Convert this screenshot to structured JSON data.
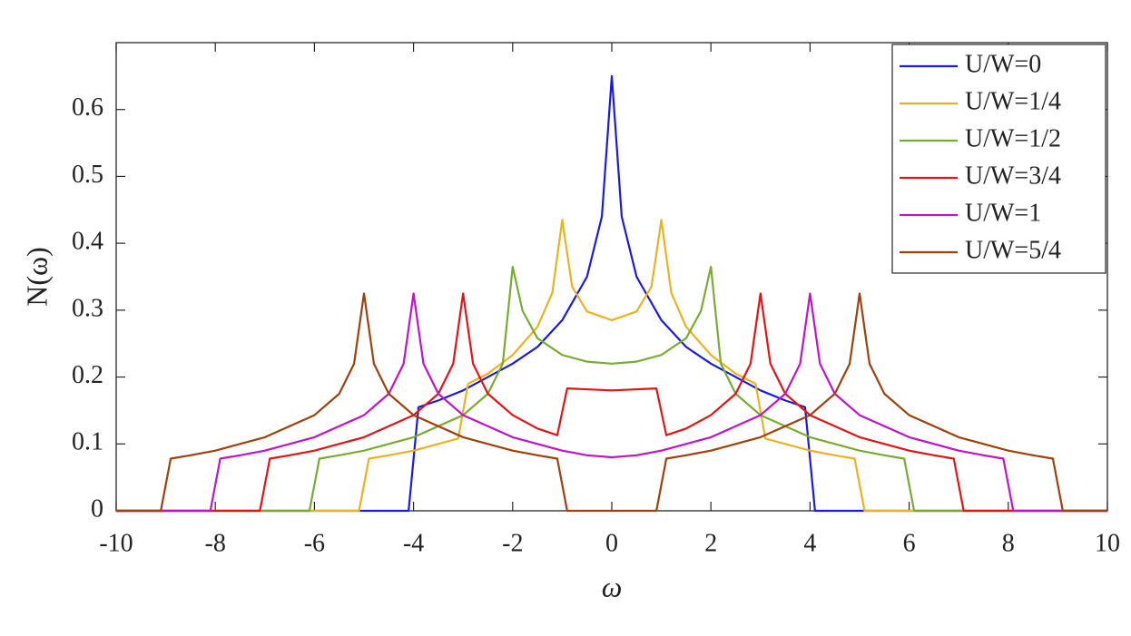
{
  "chart_data": {
    "type": "line",
    "xlabel": "ω",
    "ylabel": "N(ω)",
    "xlim": [
      -10,
      10
    ],
    "ylim": [
      0,
      0.7
    ],
    "xticks": [
      -10,
      -8,
      -6,
      -4,
      -2,
      0,
      2,
      4,
      6,
      8,
      10
    ],
    "yticks": [
      0,
      0.1,
      0.2,
      0.3,
      0.4,
      0.5,
      0.6
    ],
    "grid": false,
    "legend": "upper right",
    "series": [
      {
        "name": "U/W=0",
        "color": "#1a1ae0",
        "x": [
          -10,
          -4.1,
          -3.9,
          -3.5,
          -3,
          -2.5,
          -2,
          -1.5,
          -1,
          -0.5,
          -0.2,
          0,
          0.2,
          0.5,
          1,
          1.5,
          2,
          2.5,
          3,
          3.5,
          3.9,
          4.1,
          10
        ],
        "values": [
          0,
          0,
          0.155,
          0.165,
          0.18,
          0.2,
          0.22,
          0.245,
          0.285,
          0.35,
          0.44,
          0.65,
          0.44,
          0.35,
          0.285,
          0.245,
          0.22,
          0.2,
          0.18,
          0.165,
          0.155,
          0,
          0
        ]
      },
      {
        "name": "U/W=1/4",
        "color": "#edb120",
        "x": [
          -10,
          -5.1,
          -4.9,
          -4.5,
          -4,
          -3.5,
          -3.1,
          -2.9,
          -2.5,
          -2,
          -1.5,
          -1.2,
          -1,
          -0.8,
          -0.5,
          0,
          0.5,
          0.8,
          1,
          1.2,
          1.5,
          2,
          2.5,
          2.9,
          3.1,
          3.5,
          4,
          4.5,
          4.9,
          5.1,
          10
        ],
        "values": [
          0,
          0,
          0.078,
          0.083,
          0.09,
          0.1,
          0.108,
          0.19,
          0.205,
          0.233,
          0.275,
          0.326,
          0.435,
          0.335,
          0.298,
          0.285,
          0.298,
          0.335,
          0.435,
          0.326,
          0.275,
          0.233,
          0.205,
          0.19,
          0.108,
          0.1,
          0.09,
          0.083,
          0.078,
          0,
          0
        ]
      },
      {
        "name": "U/W=1/2",
        "color": "#77ac30",
        "x": [
          -10,
          -6.1,
          -5.9,
          -5.5,
          -5,
          -4,
          -3,
          -2.5,
          -2.2,
          -2,
          -1.8,
          -1.5,
          -1,
          -0.5,
          0,
          0.5,
          1,
          1.5,
          1.8,
          2,
          2.2,
          2.5,
          3,
          4,
          5,
          5.5,
          5.9,
          6.1,
          10
        ],
        "values": [
          0,
          0,
          0.078,
          0.083,
          0.09,
          0.11,
          0.143,
          0.175,
          0.22,
          0.365,
          0.299,
          0.258,
          0.233,
          0.223,
          0.22,
          0.223,
          0.233,
          0.258,
          0.299,
          0.365,
          0.22,
          0.175,
          0.143,
          0.11,
          0.09,
          0.083,
          0.078,
          0,
          0
        ]
      },
      {
        "name": "U/W=3/4",
        "color": "#e51414",
        "x": [
          -10,
          -7.1,
          -6.9,
          -6.5,
          -6,
          -5,
          -4,
          -3.5,
          -3.2,
          -3,
          -2.8,
          -2.5,
          -2,
          -1.5,
          -1.1,
          -0.9,
          0,
          0.9,
          1.1,
          1.5,
          2,
          2.5,
          2.8,
          3,
          3.2,
          3.5,
          4,
          5,
          6,
          6.5,
          6.9,
          7.1,
          10
        ],
        "values": [
          0,
          0,
          0.078,
          0.083,
          0.09,
          0.11,
          0.143,
          0.175,
          0.22,
          0.325,
          0.22,
          0.175,
          0.143,
          0.123,
          0.113,
          0.183,
          0.18,
          0.183,
          0.113,
          0.123,
          0.143,
          0.175,
          0.22,
          0.325,
          0.22,
          0.175,
          0.143,
          0.11,
          0.09,
          0.083,
          0.078,
          0,
          0
        ]
      },
      {
        "name": "U/W=1",
        "color": "#c014c8",
        "x": [
          -10,
          -8.1,
          -7.9,
          -7.5,
          -7,
          -6,
          -5,
          -4.5,
          -4.2,
          -4,
          -3.8,
          -3.5,
          -3,
          -2,
          -1,
          -0.5,
          0,
          0.5,
          1,
          2,
          3,
          3.5,
          3.8,
          4,
          4.2,
          4.5,
          5,
          6,
          7,
          7.5,
          7.9,
          8.1,
          10
        ],
        "values": [
          0,
          0,
          0.078,
          0.083,
          0.09,
          0.11,
          0.143,
          0.175,
          0.22,
          0.325,
          0.22,
          0.175,
          0.143,
          0.11,
          0.09,
          0.083,
          0.08,
          0.083,
          0.09,
          0.11,
          0.143,
          0.175,
          0.22,
          0.325,
          0.22,
          0.175,
          0.143,
          0.11,
          0.09,
          0.083,
          0.078,
          0,
          0
        ]
      },
      {
        "name": "U/W=5/4",
        "color": "#a0400c",
        "x": [
          -10,
          -9.1,
          -8.9,
          -8.5,
          -8,
          -7,
          -6,
          -5.5,
          -5.2,
          -5,
          -4.8,
          -4.5,
          -4,
          -3,
          -2,
          -1.5,
          -1.1,
          -0.9,
          0,
          0.9,
          1.1,
          1.5,
          2,
          3,
          4,
          4.5,
          4.8,
          5,
          5.2,
          5.5,
          6,
          7,
          8,
          8.5,
          8.9,
          9.1,
          10
        ],
        "values": [
          0,
          0,
          0.078,
          0.083,
          0.09,
          0.11,
          0.143,
          0.175,
          0.22,
          0.325,
          0.22,
          0.175,
          0.143,
          0.11,
          0.09,
          0.083,
          0.078,
          0,
          0,
          0,
          0.078,
          0.083,
          0.09,
          0.11,
          0.143,
          0.175,
          0.22,
          0.325,
          0.22,
          0.175,
          0.143,
          0.11,
          0.09,
          0.083,
          0.078,
          0,
          0
        ]
      }
    ]
  }
}
